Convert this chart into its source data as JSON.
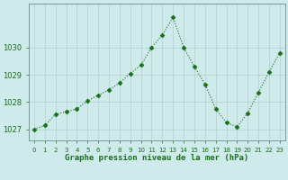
{
  "x": [
    0,
    1,
    2,
    3,
    4,
    5,
    6,
    7,
    8,
    9,
    10,
    11,
    12,
    13,
    14,
    15,
    16,
    17,
    18,
    19,
    20,
    21,
    22,
    23
  ],
  "y": [
    1027.0,
    1027.15,
    1027.55,
    1027.65,
    1027.75,
    1028.05,
    1028.25,
    1028.45,
    1028.7,
    1029.05,
    1029.35,
    1030.0,
    1030.45,
    1031.1,
    1030.0,
    1029.3,
    1028.65,
    1027.75,
    1027.25,
    1027.1,
    1027.6,
    1028.35,
    1029.1,
    1029.8
  ],
  "line_color": "#1a6e1a",
  "marker_color": "#1a6e1a",
  "bg_color": "#ceeaea",
  "grid_color": "#b0d0d0",
  "xlabel": "Graphe pression niveau de la mer (hPa)",
  "xlabel_color": "#1a6e1a",
  "tick_label_color": "#1a6e1a",
  "spine_color": "#7a9a9a",
  "ylim": [
    1026.6,
    1031.6
  ],
  "yticks": [
    1027,
    1028,
    1029,
    1030
  ],
  "xlim": [
    -0.5,
    23.5
  ],
  "xticks": [
    0,
    1,
    2,
    3,
    4,
    5,
    6,
    7,
    8,
    9,
    10,
    11,
    12,
    13,
    14,
    15,
    16,
    17,
    18,
    19,
    20,
    21,
    22,
    23
  ],
  "xtick_labels": [
    "0",
    "1",
    "2",
    "3",
    "4",
    "5",
    "6",
    "7",
    "8",
    "9",
    "10",
    "11",
    "12",
    "13",
    "14",
    "15",
    "16",
    "17",
    "18",
    "19",
    "20",
    "21",
    "22",
    "23"
  ],
  "xlabel_fontsize": 6.5,
  "ytick_fontsize": 6,
  "xtick_fontsize": 5
}
